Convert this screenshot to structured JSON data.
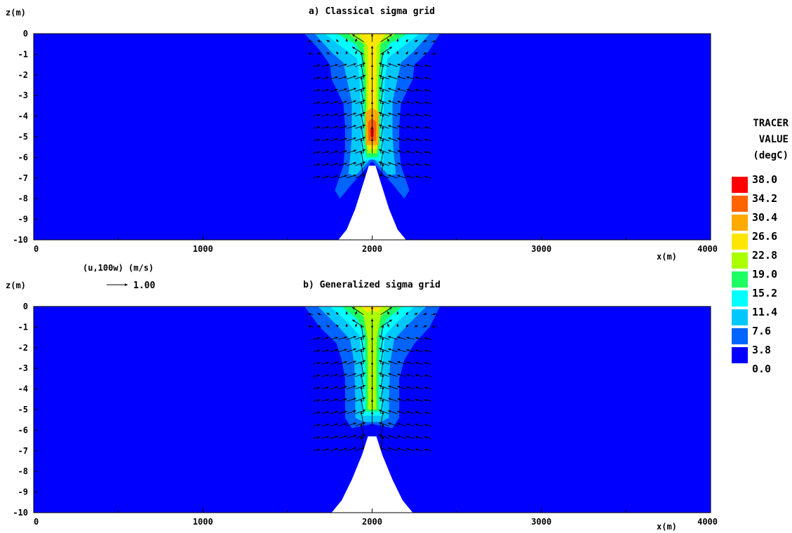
{
  "chart_data": [
    {
      "type": "heatmap",
      "title": "a) Classical sigma grid",
      "xlabel": "x(m)",
      "ylabel": "z(m)",
      "xlim": [
        0,
        4000
      ],
      "ylim": [
        -10,
        0
      ],
      "x_ticks": [
        "0",
        "1000",
        "2000",
        "3000",
        "4000"
      ],
      "y_ticks": [
        "0",
        "-1",
        "-2",
        "-3",
        "-4",
        "-5",
        "-6",
        "-7",
        "-8",
        "-9",
        "-10"
      ],
      "topography": [
        [
          1800,
          -10
        ],
        [
          1850,
          -9.5
        ],
        [
          1900,
          -8.5
        ],
        [
          1950,
          -7.2
        ],
        [
          1980,
          -6.4
        ],
        [
          2020,
          -6.4
        ],
        [
          2050,
          -7.2
        ],
        [
          2100,
          -8.5
        ],
        [
          2150,
          -9.5
        ],
        [
          2200,
          -10
        ]
      ],
      "plume_contours": [
        {
          "level": 3.8,
          "outline": [
            [
              1600,
              0
            ],
            [
              1690,
              -0.8
            ],
            [
              1750,
              -1.5
            ],
            [
              1760,
              -2.2
            ],
            [
              1830,
              -3.4
            ],
            [
              1840,
              -4.5
            ],
            [
              1840,
              -5.5
            ],
            [
              1830,
              -6.4
            ],
            [
              1780,
              -7.6
            ],
            [
              1810,
              -8
            ],
            [
              1880,
              -7.3
            ],
            [
              2000,
              -6.2
            ],
            [
              2120,
              -7.3
            ],
            [
              2190,
              -8
            ],
            [
              2220,
              -7.6
            ],
            [
              2170,
              -6.4
            ],
            [
              2160,
              -5.5
            ],
            [
              2160,
              -4.5
            ],
            [
              2170,
              -3.4
            ],
            [
              2240,
              -2.2
            ],
            [
              2250,
              -1.5
            ],
            [
              2330,
              -0.9
            ],
            [
              2400,
              0
            ]
          ]
        },
        {
          "level": 7.6,
          "outline": [
            [
              1660,
              0
            ],
            [
              1760,
              -0.9
            ],
            [
              1830,
              -1.4
            ],
            [
              1850,
              -2.2
            ],
            [
              1880,
              -3.3
            ],
            [
              1880,
              -5
            ],
            [
              1870,
              -6
            ],
            [
              1860,
              -6.8
            ],
            [
              1900,
              -6.9
            ],
            [
              2000,
              -6.0
            ],
            [
              2100,
              -6.9
            ],
            [
              2140,
              -6.8
            ],
            [
              2130,
              -6
            ],
            [
              2120,
              -5
            ],
            [
              2120,
              -3.3
            ],
            [
              2150,
              -2.2
            ],
            [
              2170,
              -1.4
            ],
            [
              2240,
              -0.9
            ],
            [
              2340,
              0
            ]
          ]
        },
        {
          "level": 11.4,
          "outline": [
            [
              1720,
              0
            ],
            [
              1830,
              -0.7
            ],
            [
              1910,
              -1.2
            ],
            [
              1925,
              -2.2
            ],
            [
              1935,
              -4
            ],
            [
              1935,
              -6.2
            ],
            [
              2000,
              -6.1
            ],
            [
              2065,
              -6.2
            ],
            [
              2065,
              -4
            ],
            [
              2075,
              -2.2
            ],
            [
              2090,
              -1.2
            ],
            [
              2170,
              -0.7
            ],
            [
              2280,
              0
            ]
          ]
        },
        {
          "level": 15.2,
          "outline": [
            [
              1790,
              0
            ],
            [
              1900,
              -0.5
            ],
            [
              1945,
              -1.2
            ],
            [
              1950,
              -3
            ],
            [
              1955,
              -5.5
            ],
            [
              1965,
              -6.0
            ],
            [
              2035,
              -6.0
            ],
            [
              2045,
              -5.5
            ],
            [
              2050,
              -3
            ],
            [
              2055,
              -1.2
            ],
            [
              2100,
              -0.5
            ],
            [
              2210,
              0
            ]
          ]
        },
        {
          "level": 19.0,
          "outline": [
            [
              1860,
              0
            ],
            [
              1950,
              -0.5
            ],
            [
              1962,
              -2
            ],
            [
              1965,
              -4
            ],
            [
              1970,
              -5.8
            ],
            [
              2030,
              -5.8
            ],
            [
              2035,
              -4
            ],
            [
              2038,
              -2
            ],
            [
              2050,
              -0.5
            ],
            [
              2140,
              0
            ]
          ]
        },
        {
          "level": 22.8,
          "outline": [
            [
              1920,
              0
            ],
            [
              1975,
              -0.6
            ],
            [
              1978,
              -2.5
            ],
            [
              1975,
              -4
            ],
            [
              1970,
              -5.6
            ],
            [
              2030,
              -5.6
            ],
            [
              2025,
              -4
            ],
            [
              2022,
              -2.5
            ],
            [
              2025,
              -0.6
            ],
            [
              2080,
              0
            ]
          ]
        },
        {
          "level": 26.6,
          "outline": [
            [
              1960,
              -3.8
            ],
            [
              1962,
              -5.4
            ],
            [
              2038,
              -5.4
            ],
            [
              2040,
              -3.8
            ],
            [
              2000,
              -3.6
            ]
          ]
        },
        {
          "level": 30.4,
          "outline": [
            [
              1975,
              -4.3
            ],
            [
              1978,
              -5.2
            ],
            [
              2022,
              -5.2
            ],
            [
              2025,
              -4.3
            ],
            [
              2000,
              -4.1
            ]
          ]
        },
        {
          "level": 34.2,
          "outline": [
            [
              1990,
              -4.6
            ],
            [
              1992,
              -5.0
            ],
            [
              2008,
              -5.0
            ],
            [
              2010,
              -4.6
            ]
          ]
        }
      ]
    },
    {
      "type": "heatmap",
      "title": "b) Generalized sigma grid",
      "xlabel": "x(m)",
      "ylabel": "z(m)",
      "xlim": [
        0,
        4000
      ],
      "ylim": [
        -10,
        0
      ],
      "x_ticks": [
        "0",
        "1000",
        "2000",
        "3000",
        "4000"
      ],
      "y_ticks": [
        "0",
        "-1",
        "-2",
        "-3",
        "-4",
        "-5",
        "-6",
        "-7",
        "-8",
        "-9",
        "-10"
      ],
      "vector_key": {
        "label": "(u,100w) (m/s)",
        "value": "1.00"
      },
      "topography": [
        [
          1760,
          -10
        ],
        [
          1820,
          -9.4
        ],
        [
          1880,
          -8.4
        ],
        [
          1940,
          -7.2
        ],
        [
          1975,
          -6.3
        ],
        [
          2025,
          -6.3
        ],
        [
          2060,
          -7.2
        ],
        [
          2120,
          -8.4
        ],
        [
          2180,
          -9.4
        ],
        [
          2240,
          -10
        ]
      ],
      "plume_contours": [
        {
          "level": 3.8,
          "outline": [
            [
              1600,
              0
            ],
            [
              1690,
              -1.0
            ],
            [
              1790,
              -1.8
            ],
            [
              1820,
              -2.6
            ],
            [
              1840,
              -3.5
            ],
            [
              1840,
              -4.5
            ],
            [
              1840,
              -5.4
            ],
            [
              1880,
              -5.9
            ],
            [
              2000,
              -5.7
            ],
            [
              2120,
              -5.9
            ],
            [
              2160,
              -5.4
            ],
            [
              2160,
              -4.5
            ],
            [
              2160,
              -3.5
            ],
            [
              2190,
              -2.6
            ],
            [
              2250,
              -1.8
            ],
            [
              2340,
              -1.0
            ],
            [
              2400,
              0
            ]
          ]
        },
        {
          "level": 7.6,
          "outline": [
            [
              1680,
              0
            ],
            [
              1790,
              -0.9
            ],
            [
              1870,
              -1.6
            ],
            [
              1895,
              -2.8
            ],
            [
              1900,
              -4.5
            ],
            [
              1900,
              -5.4
            ],
            [
              1950,
              -5.6
            ],
            [
              2050,
              -5.6
            ],
            [
              2100,
              -5.4
            ],
            [
              2100,
              -4.5
            ],
            [
              2105,
              -2.8
            ],
            [
              2130,
              -1.6
            ],
            [
              2210,
              -0.9
            ],
            [
              2320,
              0
            ]
          ]
        },
        {
          "level": 11.4,
          "outline": [
            [
              1750,
              0
            ],
            [
              1860,
              -0.8
            ],
            [
              1925,
              -1.4
            ],
            [
              1940,
              -3
            ],
            [
              1940,
              -5.3
            ],
            [
              2060,
              -5.3
            ],
            [
              2060,
              -3
            ],
            [
              2075,
              -1.4
            ],
            [
              2140,
              -0.8
            ],
            [
              2250,
              0
            ]
          ]
        },
        {
          "level": 15.2,
          "outline": [
            [
              1820,
              0
            ],
            [
              1910,
              -0.6
            ],
            [
              1955,
              -1.2
            ],
            [
              1960,
              -3
            ],
            [
              1960,
              -5.1
            ],
            [
              2040,
              -5.1
            ],
            [
              2040,
              -3
            ],
            [
              2045,
              -1.2
            ],
            [
              2090,
              -0.6
            ],
            [
              2180,
              0
            ]
          ]
        },
        {
          "level": 19.0,
          "outline": [
            [
              1890,
              0
            ],
            [
              1950,
              -0.5
            ],
            [
              1972,
              -1.5
            ],
            [
              1975,
              -3
            ],
            [
              1975,
              -5.0
            ],
            [
              2025,
              -5.0
            ],
            [
              2025,
              -3
            ],
            [
              2028,
              -1.5
            ],
            [
              2050,
              -0.5
            ],
            [
              2110,
              0
            ]
          ]
        },
        {
          "level": 22.8,
          "outline": [
            [
              1935,
              0
            ],
            [
              1975,
              -0.3
            ],
            [
              1990,
              -0.2
            ],
            [
              2010,
              -0.2
            ],
            [
              2025,
              -0.3
            ],
            [
              2065,
              0
            ]
          ]
        }
      ]
    }
  ],
  "colorbar": {
    "title_lines": [
      "TRACER",
      "VALUE",
      "(degC)"
    ],
    "labels": [
      "38.0",
      "34.2",
      "30.4",
      "26.6",
      "22.8",
      "19.0",
      "15.2",
      "11.4",
      "7.6",
      "3.8",
      "0.0"
    ],
    "levels": [
      38.0,
      34.2,
      30.4,
      26.6,
      22.8,
      19.0,
      15.2,
      11.4,
      7.6,
      3.8,
      0.0
    ],
    "colors": [
      "#ff0000",
      "#ff6400",
      "#ffaa00",
      "#ffe600",
      "#aaff00",
      "#1eff64",
      "#00ffff",
      "#00c8ff",
      "#0064ff",
      "#0000ff"
    ]
  }
}
